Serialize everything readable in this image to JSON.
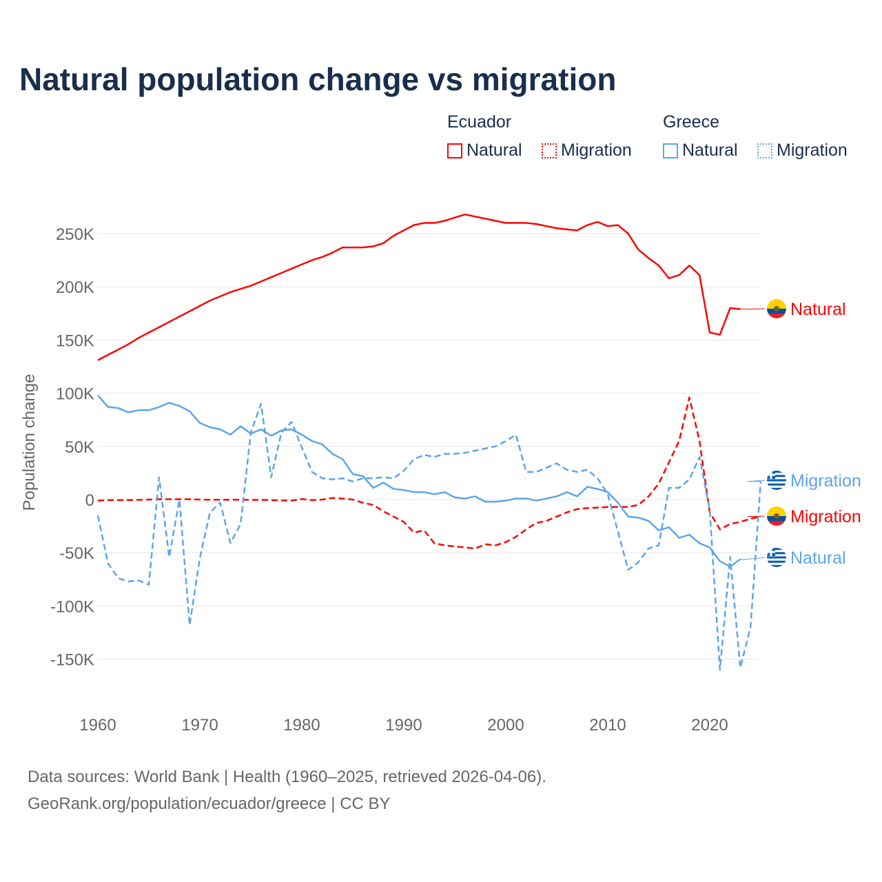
{
  "chart_data": {
    "type": "line",
    "title": "Natural population change vs migration",
    "ylabel": "Population change",
    "xlabel": "",
    "ylim": [
      -175000,
      280000
    ],
    "xlim": [
      1960,
      2025
    ],
    "x_ticks": [
      "1960",
      "1970",
      "1980",
      "1990",
      "2000",
      "2010",
      "2020"
    ],
    "y_ticks": [
      {
        "v": 250000,
        "l": "250K"
      },
      {
        "v": 200000,
        "l": "200K"
      },
      {
        "v": 150000,
        "l": "150K"
      },
      {
        "v": 100000,
        "l": "100K"
      },
      {
        "v": 50000,
        "l": "50K"
      },
      {
        "v": 0,
        "l": "0"
      },
      {
        "v": -50000,
        "l": "-50K"
      },
      {
        "v": -100000,
        "l": "-100K"
      },
      {
        "v": -150000,
        "l": "-150K"
      }
    ],
    "legend": {
      "groups": [
        {
          "title": "Ecuador",
          "items": [
            "Natural",
            "Migration"
          ]
        },
        {
          "title": "Greece",
          "items": [
            "Natural",
            "Migration"
          ]
        }
      ],
      "placement": "top-right"
    },
    "series": [
      {
        "name": "Ecuador Natural",
        "label": "Natural",
        "color": "#ff0000",
        "dash": false,
        "flag": "ecuador",
        "start": 1960,
        "values": [
          131,
          136,
          141,
          146,
          152,
          157,
          162,
          167,
          172,
          177,
          182,
          187,
          191,
          195,
          198,
          201,
          205,
          209,
          213,
          217,
          221,
          225,
          228,
          232,
          237,
          237,
          237,
          238,
          241,
          248,
          253,
          258,
          260,
          260,
          262,
          265,
          268,
          266,
          264,
          262,
          260,
          260,
          260,
          259,
          257,
          255,
          254,
          253,
          258,
          261,
          257,
          258,
          250,
          235,
          227,
          220,
          208,
          211,
          220,
          211,
          157,
          155,
          180,
          179
        ]
      },
      {
        "name": "Ecuador Migration",
        "label": "Migration",
        "color": "#ff0000",
        "dash": true,
        "flag": "ecuador",
        "start": 1960,
        "values": [
          -1,
          -0.5,
          -0.5,
          -0.5,
          -0.3,
          0,
          0.3,
          0.3,
          0.3,
          0.3,
          0,
          -0.2,
          -0.2,
          -0.2,
          -0.2,
          -0.3,
          -0.3,
          -0.5,
          -0.8,
          -1,
          0.5,
          -0.5,
          0,
          1.5,
          1,
          0,
          -3,
          -5,
          -11,
          -16,
          -21,
          -31,
          -29,
          -41,
          -43,
          -44,
          -45,
          -46,
          -42,
          -43,
          -40,
          -35,
          -28,
          -22,
          -20,
          -16,
          -12,
          -9,
          -8,
          -7.5,
          -7,
          -7,
          -7,
          -5,
          3,
          15,
          35,
          55,
          96,
          55,
          -12,
          -28,
          -23,
          -21,
          -18,
          -16
        ]
      },
      {
        "name": "Greece Migration",
        "label": "Migration",
        "color": "#5ca5eb",
        "dash": true,
        "flag": "greece",
        "start": 1960,
        "values": [
          -15,
          -60,
          -74,
          -77,
          -76,
          -80,
          21,
          -54,
          0,
          -118,
          -55,
          -12,
          -3,
          -41,
          -23,
          63,
          90,
          21,
          63,
          73,
          49,
          26,
          20,
          19,
          20,
          17,
          20,
          20,
          21,
          20,
          27,
          38,
          42,
          40,
          43,
          43,
          44,
          46,
          48,
          50,
          55,
          61,
          26,
          26,
          30,
          34,
          28,
          26,
          28,
          20,
          5,
          -30,
          -66,
          -59,
          -46,
          -43,
          11,
          11,
          19,
          40,
          -10,
          -160,
          -54,
          -158,
          -120,
          17
        ]
      },
      {
        "name": "Greece Natural",
        "label": "Natural",
        "color": "#5ca5eb",
        "dash": false,
        "flag": "greece",
        "start": 1960,
        "values": [
          98,
          87,
          86,
          82,
          84,
          84,
          87,
          91,
          88,
          83,
          72,
          68,
          66,
          61,
          69,
          62,
          66,
          60,
          65,
          66,
          61,
          55,
          52,
          43,
          38,
          24,
          22,
          11,
          16,
          10,
          9,
          7,
          7,
          5,
          7,
          2,
          1,
          3,
          -2,
          -2,
          -1,
          1,
          1,
          -1,
          1,
          3,
          7,
          3,
          12,
          10,
          7,
          -3,
          -16,
          -17,
          -20,
          -29,
          -26,
          -36,
          -33,
          -41,
          -45,
          -58,
          -63,
          -56
        ]
      }
    ],
    "value_unit": "thousands"
  },
  "footer": {
    "line1": "Data sources: World Bank | Health (1960–2025, retrieved 2026-04-06).",
    "line2": "GeoRank.org/population/ecuador/greece | CC BY"
  }
}
